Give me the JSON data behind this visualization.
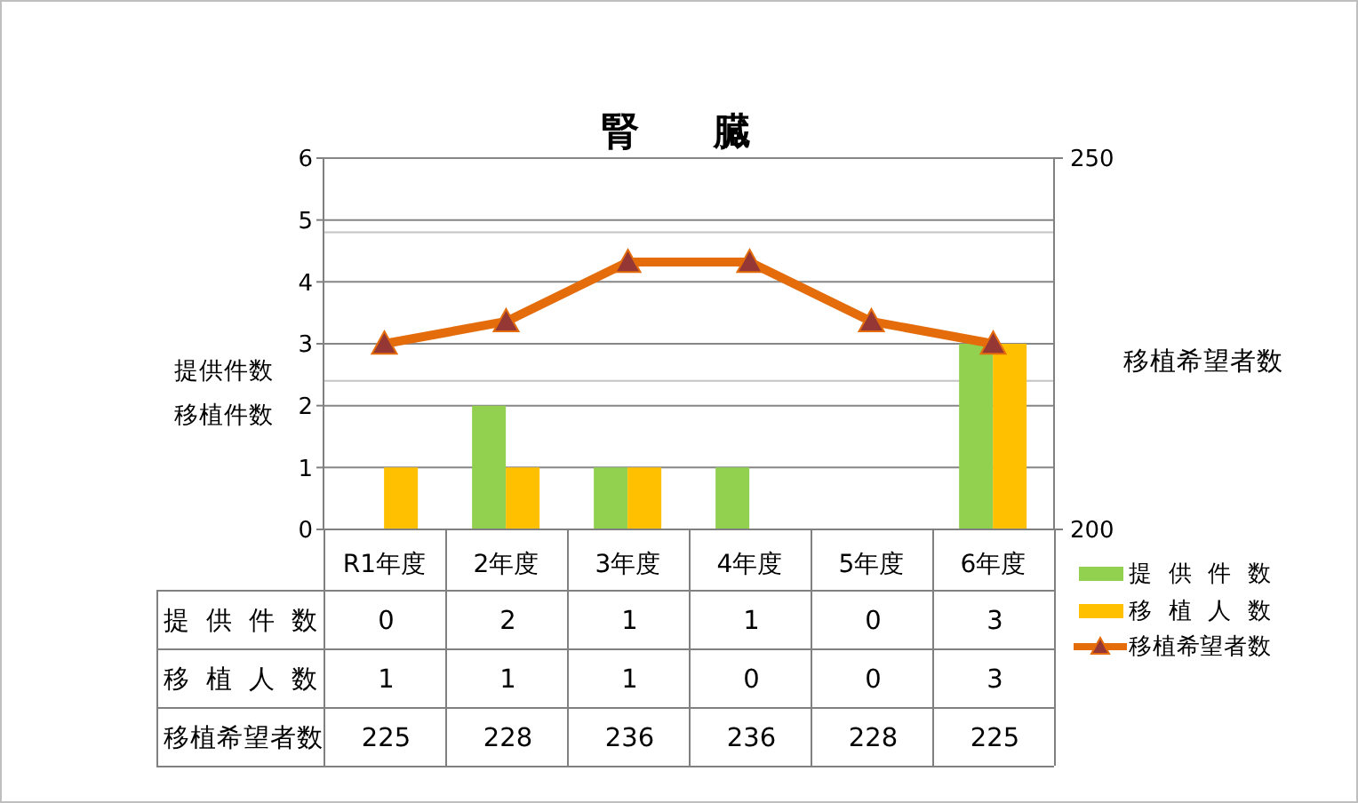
{
  "chart_data": {
    "type": "bar",
    "title": "腎　　臓",
    "ylabel": "提供件数移植件数",
    "y2label": "移植希望者数",
    "categories": [
      "R1年度",
      "2年度",
      "3年度",
      "4年度",
      "5年度",
      "6年度"
    ],
    "series": [
      {
        "name": "提 供 件 数",
        "color": "#92d050",
        "values": [
          0,
          2,
          1,
          1,
          0,
          3
        ]
      },
      {
        "name": "移 植 人 数",
        "color": "#ffc000",
        "values": [
          1,
          1,
          1,
          0,
          0,
          3
        ]
      },
      {
        "name": "移植希望者数",
        "type": "line",
        "axis": "y2",
        "color": "#e46c0a",
        "values": [
          225,
          228,
          236,
          236,
          228,
          225
        ]
      }
    ],
    "ylim": [
      0,
      6
    ],
    "yticks": [
      0,
      1,
      2,
      3,
      4,
      5,
      6
    ],
    "y2lim": [
      200,
      250
    ],
    "y2ticks": [
      200,
      {
        "value": 220,
        "label": null
      },
      {
        "value": 240,
        "label": null
      },
      250
    ],
    "grid": "y",
    "legend": "bottom right",
    "marker": "triangle",
    "data_labels": true
  }
}
